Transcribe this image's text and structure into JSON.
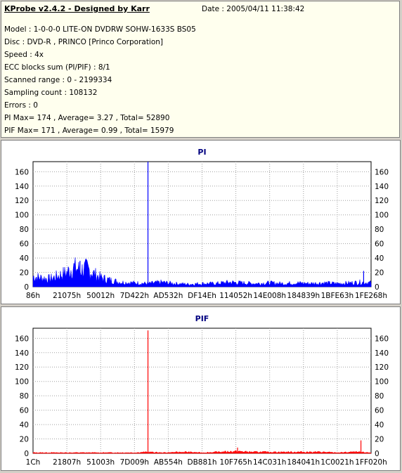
{
  "header": {
    "title": "KProbe v2.4.2 - Designed by Karr",
    "date": "Date : 2005/04/11 11:38:42",
    "lines": [
      "Model : 1-0-0-0 LITE-ON DVDRW SOHW-1633S BS05",
      "Disc : DVD-R , PRINCO [Princo Corporation]",
      "Speed : 4x",
      "ECC blocks sum (PI/PIF) : 8/1",
      "Scanned range : 0 - 2199334",
      "Sampling count : 108132",
      "Errors : 0",
      "PI Max= 174 , Average= 3.27 , Total= 52890",
      "PIF Max= 171 , Average= 0.99 , Total= 15979"
    ]
  },
  "colors": {
    "pi": "#0000ff",
    "pif": "#ff0000",
    "pi_title": "#000080",
    "pif_title": "#000080"
  },
  "chart_data": [
    {
      "type": "area",
      "title": "PI",
      "ylim": [
        0,
        174
      ],
      "yticks": [
        0,
        20,
        40,
        60,
        80,
        100,
        120,
        140,
        160
      ],
      "xticks": [
        "86h",
        "21075h",
        "50012h",
        "7D422h",
        "AD532h",
        "DF14Eh",
        "114052h",
        "14E008h",
        "184839h",
        "1BFE63h",
        "1FE268h"
      ],
      "profile": [
        [
          0,
          16
        ],
        [
          0.02,
          14
        ],
        [
          0.05,
          12
        ],
        [
          0.08,
          18
        ],
        [
          0.1,
          22
        ],
        [
          0.12,
          30
        ],
        [
          0.14,
          26
        ],
        [
          0.16,
          28
        ],
        [
          0.18,
          20
        ],
        [
          0.2,
          14
        ],
        [
          0.23,
          10
        ],
        [
          0.26,
          7
        ],
        [
          0.3,
          6
        ],
        [
          0.34,
          5
        ],
        [
          0.38,
          7
        ],
        [
          0.42,
          5
        ],
        [
          0.46,
          4
        ],
        [
          0.5,
          5
        ],
        [
          0.54,
          5
        ],
        [
          0.58,
          7
        ],
        [
          0.62,
          6
        ],
        [
          0.66,
          5
        ],
        [
          0.7,
          6
        ],
        [
          0.74,
          5
        ],
        [
          0.78,
          6
        ],
        [
          0.82,
          5
        ],
        [
          0.86,
          6
        ],
        [
          0.9,
          5
        ],
        [
          0.94,
          6
        ],
        [
          0.97,
          7
        ],
        [
          1.0,
          6
        ]
      ],
      "spikes": [
        {
          "x": 0.34,
          "value": 174
        },
        {
          "x": 0.139,
          "value": 36
        },
        {
          "x": 0.978,
          "value": 22
        }
      ]
    },
    {
      "type": "area",
      "title": "PIF",
      "ylim": [
        0,
        174
      ],
      "yticks": [
        0,
        20,
        40,
        60,
        80,
        100,
        120,
        140,
        160
      ],
      "xticks": [
        "1Ch",
        "21807h",
        "51003h",
        "7D009h",
        "AB554h",
        "DB881h",
        "10F765h",
        "14C031h",
        "184041h",
        "1C0021h",
        "1FF020h"
      ],
      "profile": [
        [
          0,
          1
        ],
        [
          0.1,
          1
        ],
        [
          0.2,
          1
        ],
        [
          0.3,
          1
        ],
        [
          0.34,
          2
        ],
        [
          0.38,
          1
        ],
        [
          0.45,
          2
        ],
        [
          0.5,
          1
        ],
        [
          0.55,
          2
        ],
        [
          0.6,
          3
        ],
        [
          0.65,
          2
        ],
        [
          0.7,
          2
        ],
        [
          0.75,
          2
        ],
        [
          0.8,
          2
        ],
        [
          0.85,
          2
        ],
        [
          0.9,
          1
        ],
        [
          0.95,
          2
        ],
        [
          1.0,
          1
        ]
      ],
      "spikes": [
        {
          "x": 0.34,
          "value": 171
        },
        {
          "x": 0.97,
          "value": 18
        },
        {
          "x": 0.605,
          "value": 8
        }
      ]
    }
  ]
}
